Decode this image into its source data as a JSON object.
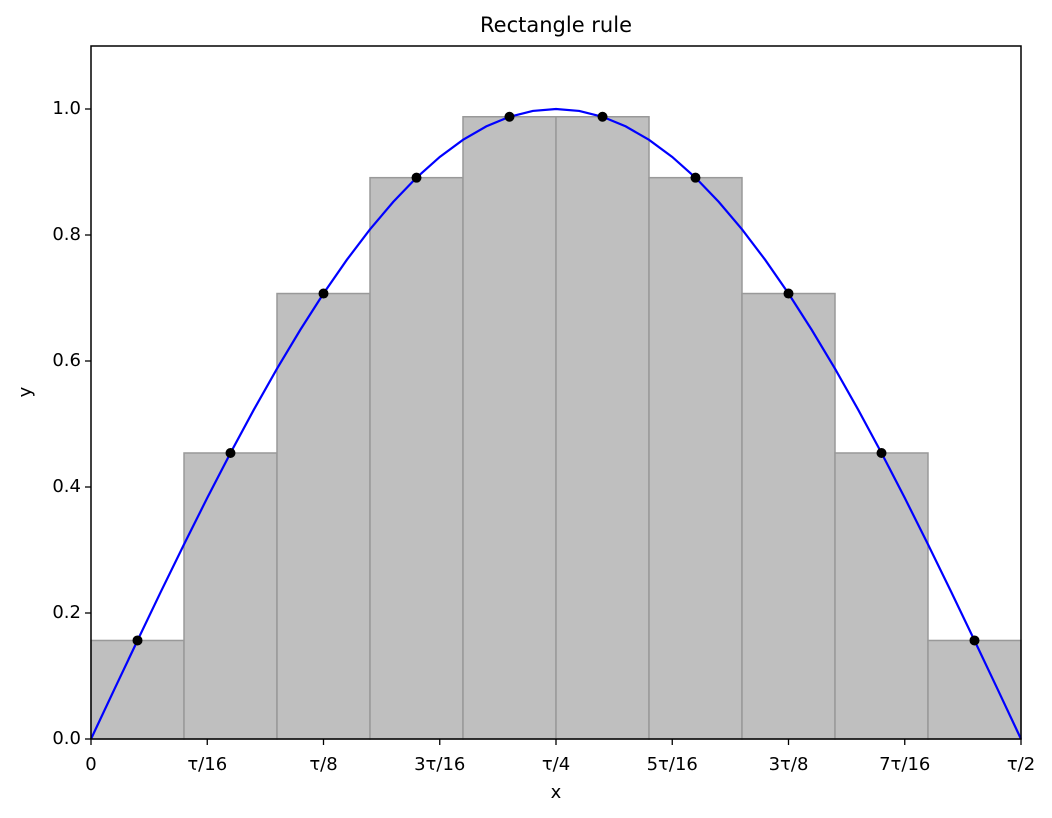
{
  "chart_data": {
    "type": "composite",
    "title": "Rectangle rule",
    "xlabel": "x",
    "ylabel": "y",
    "xlim": [
      0,
      3.1416
    ],
    "ylim": [
      0,
      1.1
    ],
    "xticks": [
      0,
      {
        "value": 0.3927,
        "label": "τ/16"
      },
      {
        "value": 0.7854,
        "label": "τ/8"
      },
      {
        "value": 1.1781,
        "label": "3τ/16"
      },
      {
        "value": 1.5708,
        "label": "τ/4"
      },
      {
        "value": 1.9635,
        "label": "5τ/16"
      },
      {
        "value": 2.3562,
        "label": "3τ/8"
      },
      {
        "value": 2.7489,
        "label": "7τ/16"
      },
      {
        "value": 3.1416,
        "label": "τ/2"
      }
    ],
    "yticks": [
      {
        "value": 0,
        "label": "0.0"
      },
      {
        "value": 0.2,
        "label": "0.2"
      },
      {
        "value": 0.4,
        "label": "0.4"
      },
      {
        "value": 0.6,
        "label": "0.6"
      },
      {
        "value": 0.8,
        "label": "0.8"
      },
      {
        "value": 1,
        "label": "1.0"
      }
    ],
    "layers": [
      {
        "type": "histogram",
        "color": "#bfbfbf",
        "edgecolor": "#999999",
        "bins": [
          0,
          0.3142,
          0.6283,
          0.9425,
          1.2566,
          1.5708,
          1.885,
          2.1991,
          2.5133,
          2.8274,
          3.1416
        ],
        "values": [
          0.1564,
          0.454,
          0.7071,
          0.891,
          0.9877,
          0.9877,
          0.891,
          0.7071,
          0.454,
          0.1564
        ]
      },
      {
        "type": "line",
        "color": "#0000ff",
        "x": [
          0,
          0.0785,
          0.1571,
          0.2356,
          0.3142,
          0.3927,
          0.4712,
          0.5498,
          0.6283,
          0.7069,
          0.7854,
          0.8639,
          0.9425,
          1.021,
          1.0996,
          1.1781,
          1.2566,
          1.3352,
          1.4137,
          1.4923,
          1.5708,
          1.6493,
          1.7279,
          1.8064,
          1.885,
          1.9635,
          2.042,
          2.1206,
          2.1991,
          2.2777,
          2.3562,
          2.4347,
          2.5133,
          2.5918,
          2.6704,
          2.7489,
          2.8274,
          2.906,
          2.9845,
          3.0631,
          3.1416
        ],
        "y": [
          0,
          0.0785,
          0.1564,
          0.2334,
          0.309,
          0.3827,
          0.454,
          0.5225,
          0.5878,
          0.6494,
          0.7071,
          0.7604,
          0.809,
          0.8526,
          0.891,
          0.9239,
          0.9511,
          0.9724,
          0.9877,
          0.9969,
          1,
          0.9969,
          0.9877,
          0.9724,
          0.9511,
          0.9239,
          0.891,
          0.8526,
          0.809,
          0.7604,
          0.7071,
          0.6494,
          0.5878,
          0.5225,
          0.454,
          0.3827,
          0.309,
          0.2334,
          0.1564,
          0.0785,
          0
        ]
      },
      {
        "type": "scatter",
        "color": "#000000",
        "x": [
          0.1571,
          0.4712,
          0.7854,
          1.0996,
          1.4137,
          1.7279,
          2.042,
          2.3562,
          2.6704,
          2.9845
        ],
        "y": [
          0.1564,
          0.454,
          0.7071,
          0.891,
          0.9877,
          0.9877,
          0.891,
          0.7071,
          0.454,
          0.1564
        ]
      }
    ]
  }
}
